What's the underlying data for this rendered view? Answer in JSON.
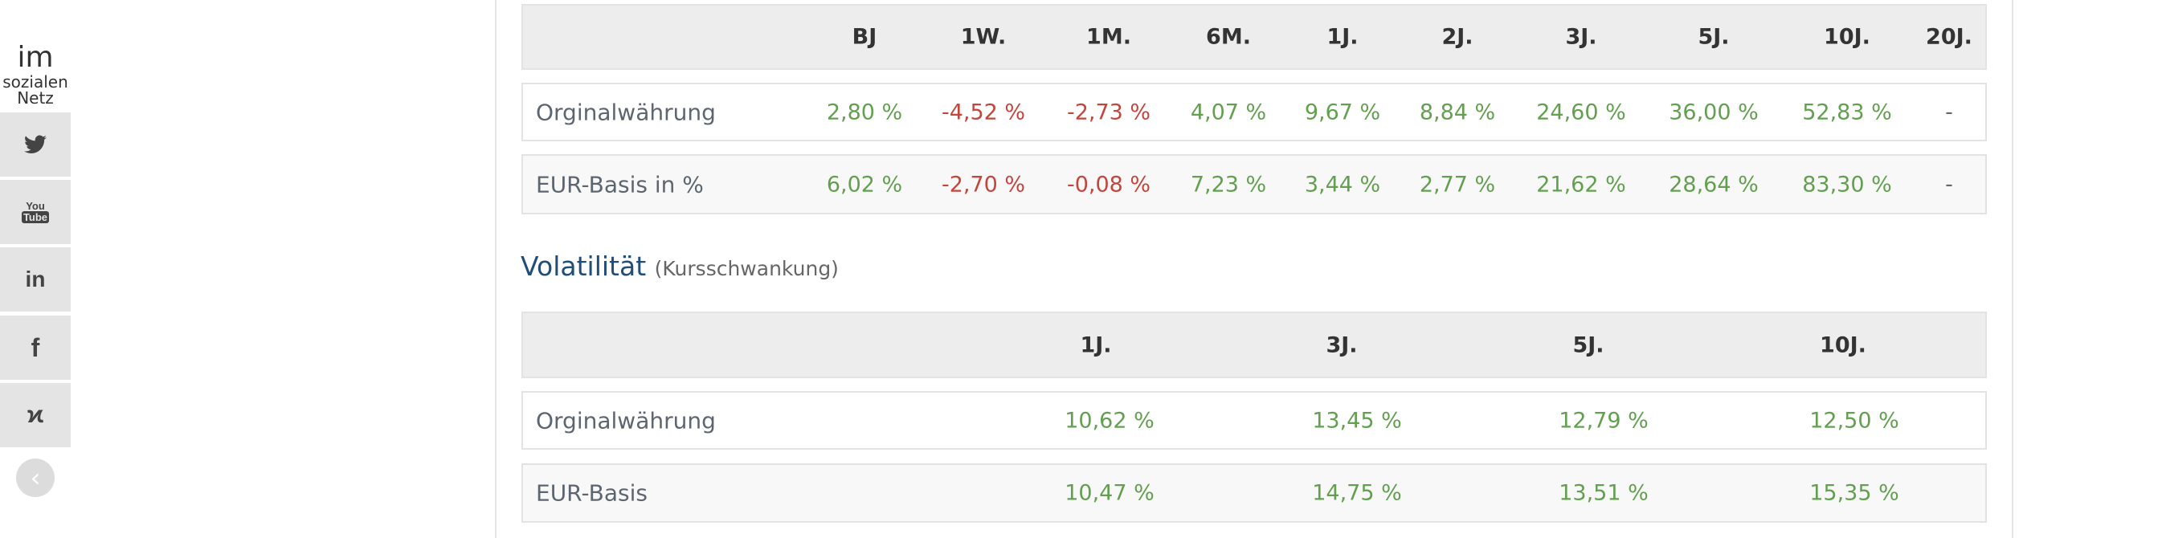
{
  "social": {
    "title_big": "im",
    "title_line2": "sozialen",
    "title_line3": "Netz",
    "items": [
      {
        "icon": "twitter-icon",
        "glyph": "🐦"
      },
      {
        "icon": "youtube-icon",
        "glyph": "You\nTube"
      },
      {
        "icon": "linkedin-icon",
        "glyph": "in"
      },
      {
        "icon": "facebook-icon",
        "glyph": "f"
      },
      {
        "icon": "xing-icon",
        "glyph": "✗"
      }
    ],
    "collapse_glyph": "‹"
  },
  "performance": {
    "headers": [
      "BJ",
      "1W.",
      "1M.",
      "6M.",
      "1J.",
      "2J.",
      "3J.",
      "5J.",
      "10J.",
      "20J."
    ],
    "rows": [
      {
        "label": "Orginalwährung",
        "values": [
          "2,80 %",
          "-4,52 %",
          "-2,73 %",
          "4,07 %",
          "9,67 %",
          "8,84 %",
          "24,60 %",
          "36,00 %",
          "52,83 %",
          "-"
        ]
      },
      {
        "label": "EUR-Basis in %",
        "values": [
          "6,02 %",
          "-2,70 %",
          "-0,08 %",
          "7,23 %",
          "3,44 %",
          "2,77 %",
          "21,62 %",
          "28,64 %",
          "83,30 %",
          "-"
        ]
      }
    ]
  },
  "volatility": {
    "title": "Volatilität",
    "subtitle": "(Kursschwankung)",
    "headers": [
      "1J.",
      "3J.",
      "5J.",
      "10J."
    ],
    "rows": [
      {
        "label": "Orginalwährung",
        "values": [
          "10,62 %",
          "13,45 %",
          "12,79 %",
          "12,50 %"
        ]
      },
      {
        "label": "EUR-Basis",
        "values": [
          "10,47 %",
          "14,75 %",
          "13,51 %",
          "15,35 %"
        ]
      }
    ]
  },
  "colors": {
    "positive": "#62a050",
    "negative": "#c4453c",
    "heading": "#1f4e79"
  }
}
